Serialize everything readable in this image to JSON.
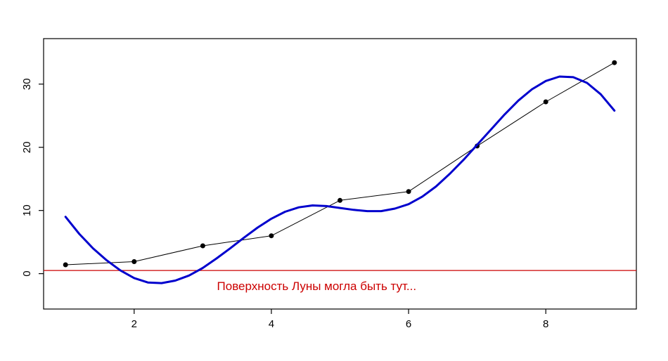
{
  "figure": {
    "background_color": "#ffffff"
  },
  "chart_data": {
    "type": "line",
    "title": "",
    "xlabel": "",
    "ylabel": "",
    "xlim": [
      0.68,
      9.32
    ],
    "ylim": [
      -5.6,
      37.2
    ],
    "x_ticks": [
      2,
      4,
      6,
      8
    ],
    "y_ticks": [
      0,
      10,
      20,
      30
    ],
    "grid": false,
    "legend": "none",
    "frame_color": "#000000",
    "tick_label_color": "#000000",
    "tick_label_font_size": 15,
    "series": [
      {
        "name": "observed-points",
        "style": "line-markers",
        "color": "#000000",
        "line_width": 1,
        "marker_radius": 3.5,
        "x": [
          1,
          2,
          3,
          4,
          5,
          6,
          7,
          8,
          9
        ],
        "y": [
          1.4,
          1.9,
          4.4,
          6.0,
          11.6,
          13.0,
          20.2,
          27.2,
          33.4
        ]
      },
      {
        "name": "smooth-fit-curve",
        "style": "line",
        "color": "#0000CD",
        "line_width": 3,
        "x": [
          1,
          1.2,
          1.4,
          1.6,
          1.8,
          2,
          2.2,
          2.4,
          2.6,
          2.8,
          3,
          3.2,
          3.4,
          3.6,
          3.8,
          4,
          4.2,
          4.4,
          4.6,
          4.8,
          5,
          5.2,
          5.4,
          5.6,
          5.8,
          6,
          6.2,
          6.4,
          6.6,
          6.8,
          7,
          7.2,
          7.4,
          7.6,
          7.8,
          8,
          8.2,
          8.4,
          8.6,
          8.8,
          9
        ],
        "y": [
          9.0,
          6.3,
          4.0,
          2.1,
          0.5,
          -0.7,
          -1.4,
          -1.5,
          -1.1,
          -0.3,
          0.9,
          2.4,
          4.0,
          5.7,
          7.3,
          8.7,
          9.8,
          10.5,
          10.8,
          10.7,
          10.4,
          10.1,
          9.9,
          9.9,
          10.3,
          11.0,
          12.2,
          13.8,
          15.8,
          18.0,
          20.4,
          22.8,
          25.2,
          27.4,
          29.2,
          30.5,
          31.2,
          31.1,
          30.2,
          28.4,
          25.8
        ]
      },
      {
        "name": "moon-surface-level-line",
        "style": "hline",
        "color": "#CC0000",
        "line_width": 1.3,
        "y": 0.5
      }
    ],
    "annotation": {
      "text": "Поверхность Луны могла быть тут...",
      "x": 4.66,
      "y": -2.6,
      "color": "#CC0000",
      "font_size": 17
    }
  }
}
